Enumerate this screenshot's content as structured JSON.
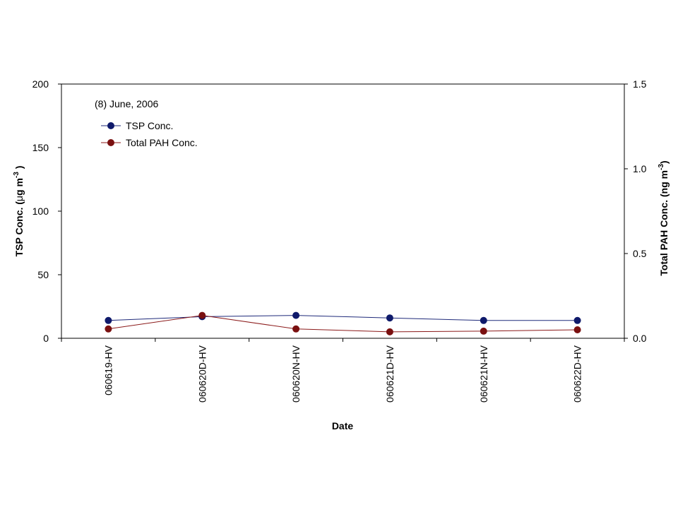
{
  "chart_data": {
    "type": "line",
    "annotation": "(8) June, 2006",
    "xlabel": "Date",
    "ylabel_left": {
      "main": "TSP Conc. (",
      "mu": "μ",
      "unit": "g m",
      "exp": "-3",
      "close": ")"
    },
    "ylabel_right": {
      "main": "Total PAH Conc. (ng m",
      "exp": "-3",
      "close": ")"
    },
    "categories": [
      "060619-HV",
      "060620D-HV",
      "060620N-HV",
      "060621D-HV",
      "060621N-HV",
      "060622D-HV"
    ],
    "ylim_left": [
      0,
      200
    ],
    "yticks_left": [
      "0",
      "50",
      "100",
      "150",
      "200"
    ],
    "ylim_right": [
      0,
      1.5
    ],
    "yticks_right": [
      "0.0",
      "0.5",
      "1.0",
      "1.5"
    ],
    "legend_position": "top-left",
    "grid": false,
    "series": [
      {
        "name": "TSP Conc.",
        "axis": "left",
        "color": "#1f2a7a",
        "marker_color": "#0f1a6b",
        "values": [
          14,
          17,
          18,
          16,
          14,
          14
        ]
      },
      {
        "name": "Total PAH Conc.",
        "axis": "right",
        "color": "#8b1a1a",
        "marker_color": "#7a1010",
        "values": [
          0.055,
          0.135,
          0.055,
          0.038,
          0.042,
          0.05
        ]
      }
    ]
  }
}
